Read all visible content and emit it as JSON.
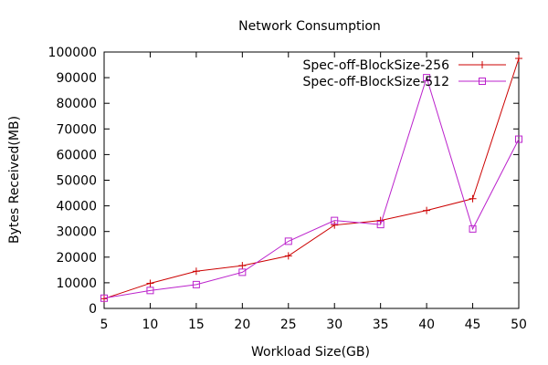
{
  "chart_data": {
    "type": "line",
    "title": "Network Consumption",
    "xlabel": "Workload Size(GB)",
    "ylabel": "Bytes Received(MB)",
    "xlim": [
      5,
      50
    ],
    "ylim": [
      0,
      100000
    ],
    "x_ticks": [
      5,
      10,
      15,
      20,
      25,
      30,
      35,
      40,
      45,
      50
    ],
    "y_ticks": [
      0,
      10000,
      20000,
      30000,
      40000,
      50000,
      60000,
      70000,
      80000,
      90000,
      100000
    ],
    "x": [
      5,
      10,
      15,
      20,
      25,
      30,
      35,
      40,
      45,
      50
    ],
    "grid": false,
    "legend_position": "top-right",
    "series": [
      {
        "name": "Spec-off-BlockSize-256",
        "color": "#cc0000",
        "marker": "plus",
        "values": [
          3800,
          9800,
          14500,
          16700,
          20500,
          32500,
          34300,
          38200,
          42800,
          97500
        ]
      },
      {
        "name": "Spec-off-BlockSize-512",
        "color": "#bb22cc",
        "marker": "square",
        "values": [
          4000,
          7000,
          9300,
          14100,
          26200,
          34300,
          32700,
          90000,
          31000,
          66000
        ]
      }
    ]
  }
}
